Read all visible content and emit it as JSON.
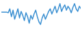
{
  "chart_data": {
    "type": "line",
    "color": "#3a8fd1",
    "tick_labels": false,
    "grid": false,
    "ylim": [
      0,
      40
    ],
    "values": [
      25,
      25,
      25,
      25,
      24,
      30,
      18,
      28,
      14,
      22,
      30,
      16,
      26,
      20,
      12,
      24,
      18,
      8,
      20,
      14,
      22,
      28,
      18,
      10,
      6,
      16,
      22,
      14,
      20,
      26,
      30,
      22,
      28,
      34,
      24,
      30,
      38,
      26,
      32,
      36,
      28,
      34,
      30,
      24,
      32,
      38,
      30,
      26,
      34,
      30
    ]
  }
}
